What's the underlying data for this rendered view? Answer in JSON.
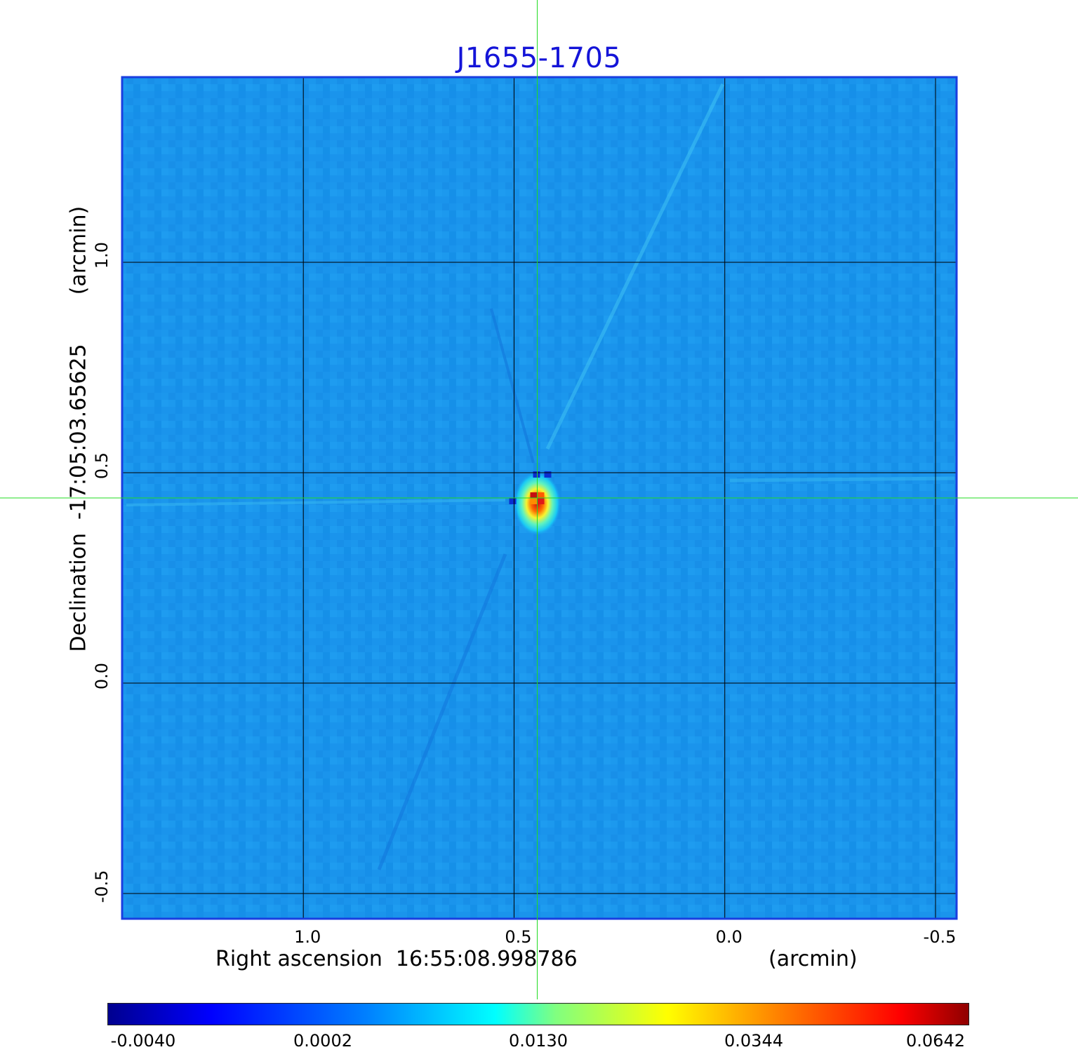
{
  "chart_data": {
    "type": "heatmap",
    "title": "J1655-1705",
    "xlabel": "Right ascension  16:55:08.998786",
    "xunit": "(arcmin)",
    "ylabel": "Declination  -17:05:03.65625",
    "yunit": "(arcmin)",
    "xlim": [
      1.43,
      -0.55
    ],
    "ylim": [
      -0.56,
      1.44
    ],
    "xticks": [
      {
        "value": 1.0,
        "label": "1.0"
      },
      {
        "value": 0.5,
        "label": "0.5"
      },
      {
        "value": 0.0,
        "label": "0.0"
      },
      {
        "value": -0.5,
        "label": "-0.5"
      }
    ],
    "yticks": [
      {
        "value": -0.5,
        "label": "-0.5"
      },
      {
        "value": 0.0,
        "label": "0.0"
      },
      {
        "value": 0.5,
        "label": "0.5"
      },
      {
        "value": 1.0,
        "label": "1.0"
      }
    ],
    "grid": true,
    "crosshair": {
      "x": 0.445,
      "y": 0.44
    },
    "peak": {
      "x": 0.445,
      "y": 0.44,
      "value": 0.0642
    },
    "background_level": 0.0002,
    "colorbar": {
      "min": -0.004,
      "max": 0.0642,
      "ticks": [
        "-0.0040",
        "0.0002",
        "0.0130",
        "0.0344",
        "0.0642"
      ],
      "colormap": "jet"
    }
  }
}
